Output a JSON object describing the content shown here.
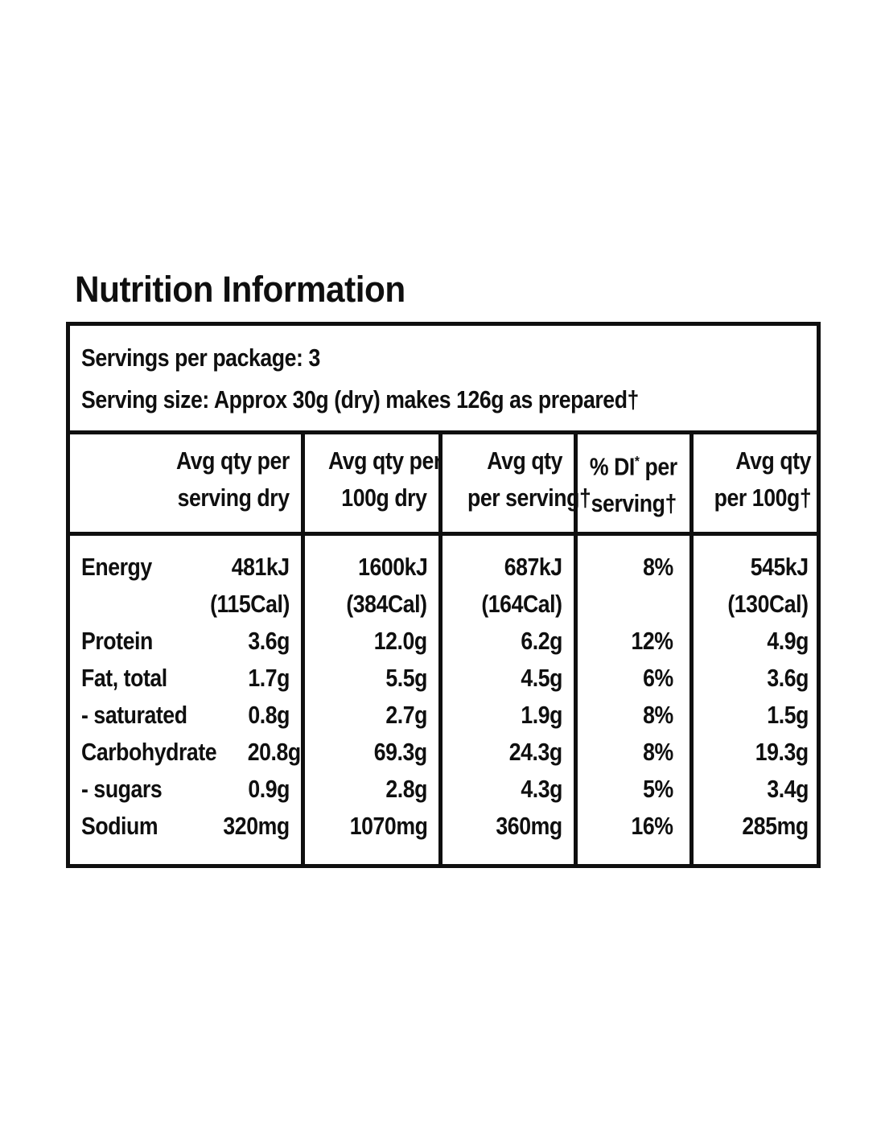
{
  "title": "Nutrition Information",
  "serving_info": {
    "servings_per_package": "Servings per package: 3",
    "serving_size": "Serving size: Approx 30g (dry) makes 126g as prepared†"
  },
  "table": {
    "headers": {
      "serving_dry": {
        "line1": "Avg qty per",
        "line2": "serving dry"
      },
      "dry_100g": {
        "line1": "Avg qty per",
        "line2": "100g dry"
      },
      "per_serving": {
        "line1": "Avg qty",
        "line2": "per serving†"
      },
      "di": {
        "line1_prefix": "% DI",
        "star": "*",
        "line1_suffix": " per",
        "line2": "serving†"
      },
      "per_100g": {
        "line1": "Avg qty",
        "line2": "per 100g†"
      }
    },
    "rows": [
      {
        "label": "Energy",
        "serving_dry": "481kJ",
        "dry_100g": "1600kJ",
        "per_serving": "687kJ",
        "di": "8%",
        "per_100g": "545kJ"
      },
      {
        "label": "",
        "serving_dry": "(115Cal)",
        "dry_100g": "(384Cal)",
        "per_serving": "(164Cal)",
        "di": "",
        "per_100g": "(130Cal)"
      },
      {
        "label": "Protein",
        "serving_dry": "3.6g",
        "dry_100g": "12.0g",
        "per_serving": "6.2g",
        "di": "12%",
        "per_100g": "4.9g"
      },
      {
        "label": "Fat, total",
        "serving_dry": "1.7g",
        "dry_100g": "5.5g",
        "per_serving": "4.5g",
        "di": "6%",
        "per_100g": "3.6g"
      },
      {
        "label": "- saturated",
        "serving_dry": "0.8g",
        "dry_100g": "2.7g",
        "per_serving": "1.9g",
        "di": "8%",
        "per_100g": "1.5g"
      },
      {
        "label": "Carbohydrate",
        "serving_dry": "20.8g",
        "dry_100g": "69.3g",
        "per_serving": "24.3g",
        "di": "8%",
        "per_100g": "19.3g"
      },
      {
        "label": "- sugars",
        "serving_dry": "0.9g",
        "dry_100g": "2.8g",
        "per_serving": "4.3g",
        "di": "5%",
        "per_100g": "3.4g"
      },
      {
        "label": "Sodium",
        "serving_dry": "320mg",
        "dry_100g": "1070mg",
        "per_serving": "360mg",
        "di": "16%",
        "per_100g": "285mg"
      }
    ]
  },
  "colors": {
    "ink": "#0f0f0f",
    "background": "#ffffff"
  }
}
